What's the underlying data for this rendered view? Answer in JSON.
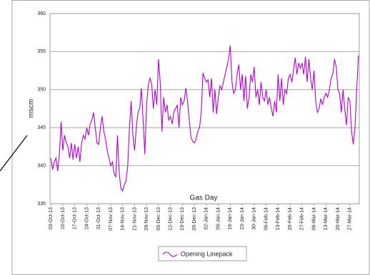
{
  "chart_data": {
    "type": "line",
    "x_label": "Gas Day",
    "y_label": "mscm",
    "categories": [
      "03-Oct-13",
      null,
      null,
      null,
      null,
      null,
      null,
      "10-Oct-13",
      null,
      null,
      null,
      null,
      null,
      null,
      "17-Oct-13",
      null,
      null,
      null,
      null,
      null,
      null,
      "24-Oct-13",
      null,
      null,
      null,
      null,
      null,
      null,
      "31-Oct-13",
      null,
      null,
      null,
      null,
      null,
      null,
      "07-Nov-13",
      null,
      null,
      null,
      null,
      null,
      null,
      "14-Nov-13",
      null,
      null,
      null,
      null,
      null,
      null,
      "21-Nov-13",
      null,
      null,
      null,
      null,
      null,
      null,
      "28-Nov-13",
      null,
      null,
      null,
      null,
      null,
      null,
      "05-Dec-13",
      null,
      null,
      null,
      null,
      null,
      null,
      "12-Dec-13",
      null,
      null,
      null,
      null,
      null,
      null,
      "19-Dec-13",
      null,
      null,
      null,
      null,
      null,
      null,
      "26-Dec-13",
      null,
      null,
      null,
      null,
      null,
      null,
      "02-Jan-14",
      null,
      null,
      null,
      null,
      null,
      null,
      "09-Jan-14",
      null,
      null,
      null,
      null,
      null,
      null,
      "16-Jan-14",
      null,
      null,
      null,
      null,
      null,
      null,
      "23-Jan-14",
      null,
      null,
      null,
      null,
      null,
      null,
      "30-Jan-14",
      null,
      null,
      null,
      null,
      null,
      null,
      "06-Feb-14",
      null,
      null,
      null,
      null,
      null,
      null,
      "13-Feb-14",
      null,
      null,
      null,
      null,
      null,
      null,
      "20-Feb-14",
      null,
      null,
      null,
      null,
      null,
      null,
      "27-Feb-14",
      null,
      null,
      null,
      null,
      null,
      null,
      "06-Mar-14",
      null,
      null,
      null,
      null,
      null,
      null,
      "13-Mar-14",
      null,
      null,
      null,
      null,
      null,
      null,
      "20-Mar-14",
      null,
      null,
      null,
      null,
      null,
      null,
      "27-Mar-14",
      null,
      null,
      null,
      null,
      null
    ],
    "series": [
      {
        "name": "Opening Linepack",
        "color": "#b400d2",
        "values": [
          341,
          339.5,
          340.5,
          341,
          339.3,
          341.5,
          345.8,
          342,
          344,
          343,
          342.5,
          341,
          343,
          340.8,
          342.8,
          341,
          342.5,
          340.5,
          343,
          344,
          343.5,
          345,
          344,
          345.5,
          346,
          347,
          345,
          343,
          342.8,
          345,
          346.5,
          344.5,
          343.5,
          342,
          341,
          340,
          340.5,
          339,
          338.5,
          344,
          339,
          337,
          336.7,
          337.5,
          338,
          340,
          345,
          348.5,
          344,
          342,
          345,
          347,
          347.5,
          350.2,
          346,
          341.5,
          348,
          350.5,
          351.5,
          350.8,
          347.5,
          350,
          348,
          354,
          351,
          344.5,
          349,
          347,
          348,
          346,
          346.5,
          345.5,
          347,
          347.5,
          348,
          345,
          349,
          348,
          348.5,
          350.2,
          348.5,
          346,
          343.8,
          343.2,
          343,
          343.5,
          344.5,
          345,
          347,
          352.2,
          351.5,
          351,
          351.3,
          349,
          351.5,
          347,
          350,
          346.8,
          349,
          350.5,
          350,
          351,
          352,
          353,
          354,
          355.8,
          351,
          349.5,
          350,
          352,
          353.3,
          350,
          352,
          348.5,
          351.8,
          347.5,
          349,
          352,
          351,
          353,
          349,
          350,
          348,
          351,
          349,
          348.5,
          350,
          348,
          349,
          347.5,
          346.5,
          348.5,
          347,
          352,
          348.5,
          351.5,
          348,
          350,
          349.5,
          351.5,
          352,
          351,
          352.5,
          354.2,
          352,
          353.5,
          352.8,
          353.5,
          352,
          354.3,
          351,
          354,
          351.5,
          350,
          352.5,
          348.5,
          347,
          347.5,
          348.8,
          348,
          349,
          349.5,
          349,
          350,
          351.5,
          352,
          354,
          353,
          350,
          349.5,
          347,
          350,
          347.5,
          345.3,
          349,
          348.5,
          344.5,
          342.8,
          345,
          350,
          354.5
        ]
      }
    ],
    "ylim": [
      335,
      360
    ],
    "yticks": [
      335,
      340,
      345,
      350,
      355,
      360
    ],
    "grid": true,
    "legend": "bottom"
  }
}
